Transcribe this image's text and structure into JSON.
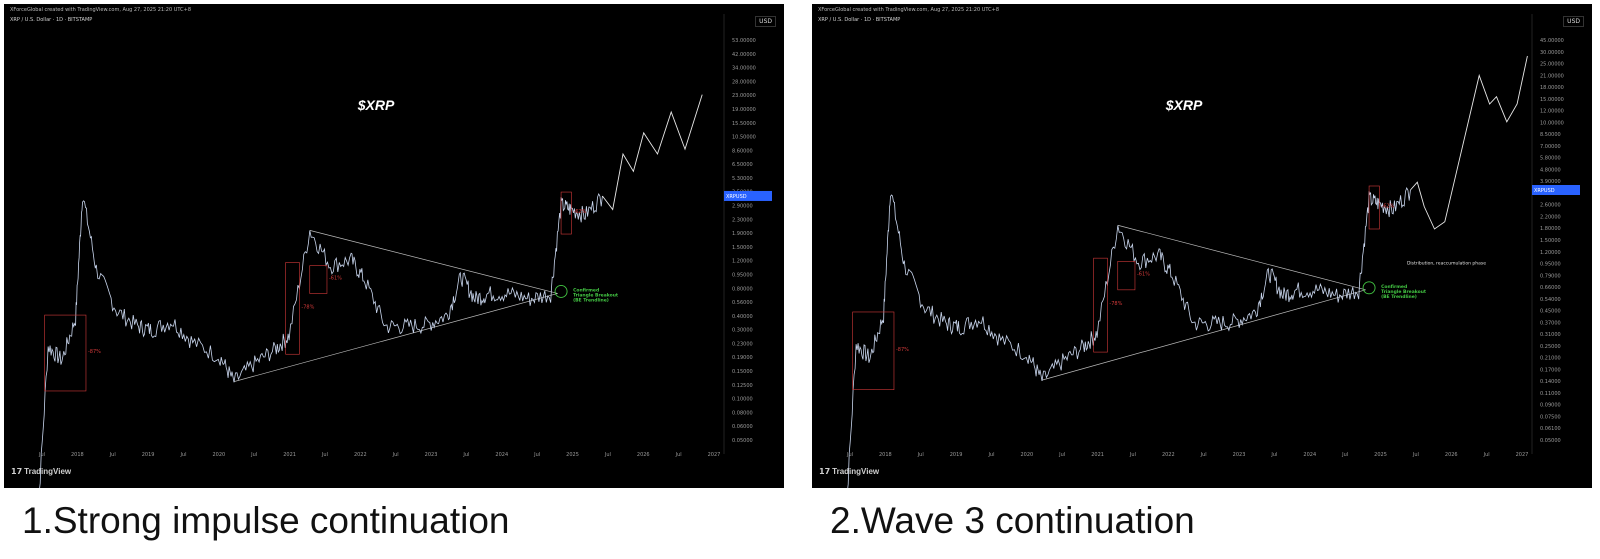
{
  "panels": [
    {
      "header": "XForceGlobal created with TradingView.com, Aug 27, 2025 21:20 UTC+8",
      "symbol": "XRP / U.S. Dollar · 1D · BITSTAMP",
      "currency": "USD",
      "brand": "TradingView",
      "title": "$XRP",
      "price_label": "XRPUSD",
      "caption": "1.Strong impulse continuation",
      "breakout_note": [
        "Confirmed",
        "Triangle Breakout",
        "(BE Trendline)"
      ],
      "distribution_note": ""
    },
    {
      "header": "XForceGlobal created with TradingView.com, Aug 27, 2025 21:20 UTC+8",
      "symbol": "XRP / U.S. Dollar · 1D · BITSTAMP",
      "currency": "USD",
      "brand": "TradingView",
      "title": "$XRP",
      "price_label": "XRPUSD",
      "caption": "2.Wave 3 continuation",
      "breakout_note": [
        "Confirmed",
        "Triangle Breakout",
        "(BE Trendline)"
      ],
      "distribution_note": "Distribution, reaccumulation phase"
    }
  ],
  "chart_data": [
    {
      "type": "line",
      "scale": "log",
      "title": "$XRP",
      "xlabel": "",
      "ylabel": "",
      "x_ticks": [
        "Jul",
        "2018",
        "Jul",
        "2019",
        "Jul",
        "2020",
        "Jul",
        "2021",
        "Jul",
        "2022",
        "Jul",
        "2023",
        "Jul",
        "2024",
        "Jul",
        "2025",
        "Jul",
        "2026",
        "Jul",
        "2027"
      ],
      "y_ticks": [
        "53.00000",
        "42.00000",
        "34.00000",
        "28.00000",
        "23.00000",
        "19.00000",
        "15.50000",
        "10.50000",
        "8.60000",
        "6.50000",
        "5.30000",
        "3.50000",
        "2.90000",
        "2.30000",
        "1.90000",
        "1.50000",
        "1.20000",
        "0.95000",
        "0.80000",
        "0.56000",
        "0.40000",
        "0.30000",
        "0.23000",
        "0.19000",
        "0.15000",
        "0.12500",
        "0.10000",
        "0.08000",
        "0.06000",
        "0.05000"
      ],
      "ylim": [
        0.05,
        53
      ],
      "colors": {
        "price": "#c9d6ee",
        "projection": "#e8e8e8",
        "annotation": "#d33a3a",
        "breakout": "#43c743",
        "price_tag": "#2962ff"
      },
      "series": [
        {
          "x": [
            2017.3,
            2017.5,
            2017.7,
            2017.9,
            2018.0,
            2018.2,
            2018.5,
            2018.8,
            2019.0,
            2019.3,
            2019.6,
            2020.0,
            2020.2,
            2020.5,
            2020.8,
            2021.0,
            2021.3,
            2021.6,
            2021.9,
            2022.1,
            2022.4,
            2022.7,
            2023.0,
            2023.3,
            2023.5,
            2023.7,
            2023.9,
            2024.2,
            2024.5,
            2024.8,
            2024.95,
            2025.1,
            2025.3,
            2025.55
          ],
          "values": [
            0.006,
            0.25,
            0.2,
            0.4,
            3.1,
            0.9,
            0.45,
            0.35,
            0.33,
            0.38,
            0.27,
            0.21,
            0.14,
            0.19,
            0.24,
            0.3,
            1.7,
            0.95,
            1.05,
            0.75,
            0.35,
            0.35,
            0.36,
            0.42,
            0.8,
            0.55,
            0.6,
            0.6,
            0.55,
            0.6,
            2.6,
            2.4,
            2.2,
            3.0
          ]
        },
        {
          "x": [
            2025.55,
            2025.7,
            2025.85,
            2026.0,
            2026.15,
            2026.35,
            2026.55,
            2026.75,
            2027.0
          ],
          "values": [
            3.0,
            2.4,
            6.0,
            4.5,
            8.5,
            6.0,
            12.0,
            6.5,
            16.0
          ]
        }
      ],
      "annotations": [
        "-87%",
        "-78%",
        "-61%",
        "-62%"
      ]
    },
    {
      "type": "line",
      "scale": "log",
      "title": "$XRP",
      "xlabel": "",
      "ylabel": "",
      "x_ticks": [
        "Jul",
        "2018",
        "Jul",
        "2019",
        "Jul",
        "2020",
        "Jul",
        "2021",
        "Jul",
        "2022",
        "Jul",
        "2023",
        "Jul",
        "2024",
        "Jul",
        "2025",
        "Jul",
        "2026",
        "Jul",
        "2027"
      ],
      "y_ticks": [
        "45.00000",
        "30.00000",
        "25.00000",
        "21.00000",
        "18.00000",
        "15.00000",
        "12.00000",
        "10.00000",
        "8.50000",
        "7.00000",
        "5.80000",
        "4.80000",
        "3.90000",
        "3.20000",
        "2.60000",
        "2.20000",
        "1.80000",
        "1.50000",
        "1.20000",
        "0.95000",
        "0.79000",
        "0.66000",
        "0.54000",
        "0.45000",
        "0.37000",
        "0.31000",
        "0.25000",
        "0.21000",
        "0.17000",
        "0.14000",
        "0.11000",
        "0.09000",
        "0.07500",
        "0.06100",
        "0.05000"
      ],
      "ylim": [
        0.05,
        45
      ],
      "colors": {
        "price": "#c9d6ee",
        "projection": "#e8e8e8",
        "annotation": "#d33a3a",
        "breakout": "#43c743",
        "price_tag": "#2962ff"
      },
      "series": [
        {
          "x": [
            2017.3,
            2017.5,
            2017.7,
            2017.9,
            2018.0,
            2018.2,
            2018.5,
            2018.8,
            2019.0,
            2019.3,
            2019.6,
            2020.0,
            2020.2,
            2020.5,
            2020.8,
            2021.0,
            2021.3,
            2021.6,
            2021.9,
            2022.1,
            2022.4,
            2022.7,
            2023.0,
            2023.3,
            2023.5,
            2023.7,
            2023.9,
            2024.2,
            2024.5,
            2024.8,
            2024.95,
            2025.1,
            2025.3,
            2025.55
          ],
          "values": [
            0.006,
            0.25,
            0.2,
            0.4,
            3.1,
            0.9,
            0.45,
            0.35,
            0.33,
            0.38,
            0.27,
            0.21,
            0.14,
            0.19,
            0.24,
            0.3,
            1.7,
            0.95,
            1.05,
            0.75,
            0.35,
            0.35,
            0.36,
            0.42,
            0.8,
            0.55,
            0.6,
            0.6,
            0.55,
            0.6,
            2.6,
            2.4,
            2.2,
            3.0
          ]
        },
        {
          "x": [
            2025.55,
            2025.65,
            2025.75,
            2025.9,
            2026.05,
            2026.55,
            2026.7,
            2026.8,
            2026.95,
            2027.1,
            2027.25
          ],
          "values": [
            3.0,
            3.4,
            2.3,
            1.6,
            1.8,
            19.0,
            12.0,
            13.5,
            9.0,
            12.0,
            26.0
          ]
        }
      ],
      "annotations": [
        "-87%",
        "-78%",
        "-61%",
        "-62%"
      ]
    }
  ]
}
